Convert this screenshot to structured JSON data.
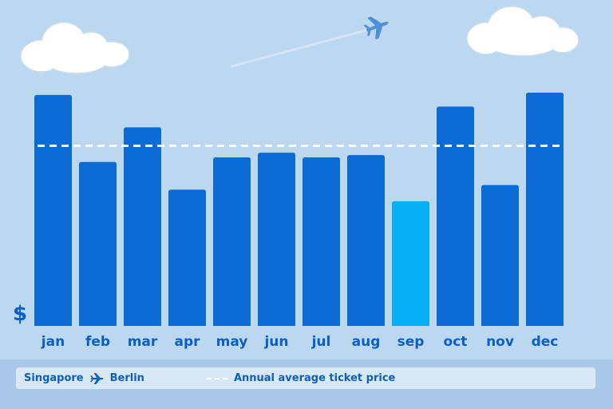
{
  "chart_data": {
    "type": "bar",
    "categories": [
      "jan",
      "feb",
      "mar",
      "apr",
      "may",
      "jun",
      "jul",
      "aug",
      "sep",
      "oct",
      "nov",
      "dec"
    ],
    "values": [
      100,
      71,
      86,
      59,
      73,
      75,
      73,
      74,
      54,
      95,
      61,
      101
    ],
    "highlight_index": 8,
    "average": 78,
    "ylim": [
      0,
      110
    ],
    "ylabel": "$",
    "colors": {
      "bar": "#0a6ad6",
      "highlight": "#06aef5",
      "average_line": "#ffffff",
      "label": "#0b5fc2"
    }
  },
  "legend": {
    "origin": "Singapore",
    "destination": "Berlin",
    "route_icon": "airplane-icon",
    "average_label": "Annual average ticket price"
  },
  "decor": {
    "icons": [
      "cloud-icon",
      "airplane-icon"
    ]
  }
}
